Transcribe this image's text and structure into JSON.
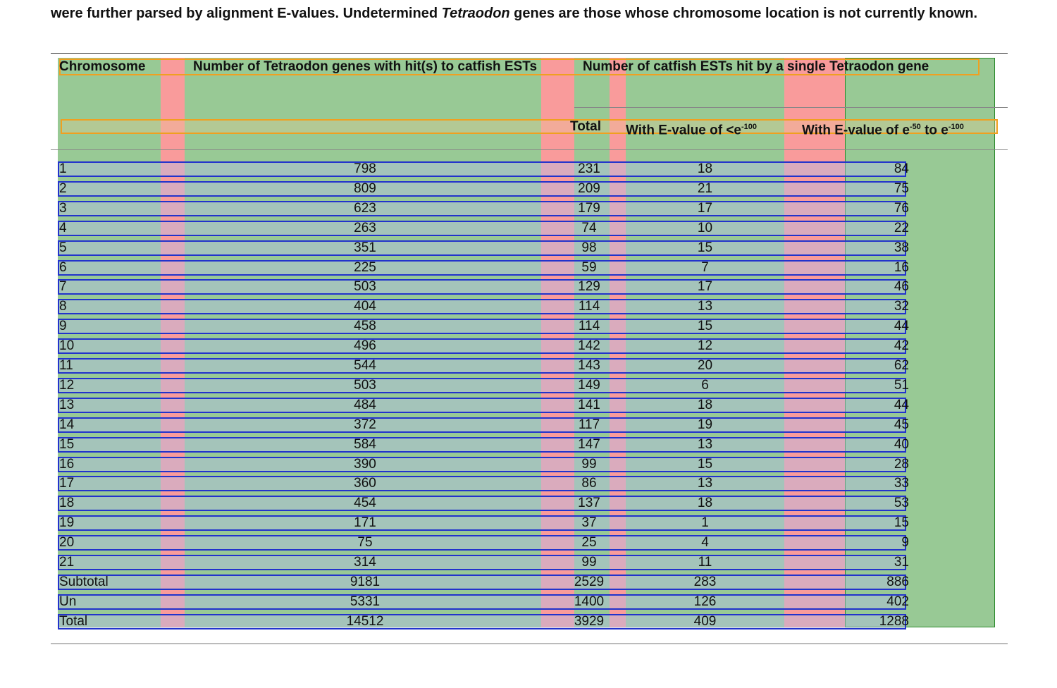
{
  "caption": {
    "text1": "were further parsed by alignment E-values. Undetermined ",
    "italic": "Tetraodon",
    "text2": " genes are those whose chromosome location is not currently known."
  },
  "header": {
    "chromosome": "Chromosome",
    "genes": "Number of Tetraodon genes with hit(s) to catfish ESTs",
    "group": "Number of catfish ESTs hit by a single Tetraodon gene",
    "total": "Total",
    "evalue_high": {
      "text": "With E-value of <e",
      "sup": "-100"
    },
    "evalue_mid": {
      "text1": "With E-value of e",
      "sup1": "-50",
      "text2": " to e",
      "sup2": "-100"
    }
  },
  "table": {
    "rows": [
      [
        "1",
        "798",
        "231",
        "18",
        "84"
      ],
      [
        "2",
        "809",
        "209",
        "21",
        "75"
      ],
      [
        "3",
        "623",
        "179",
        "17",
        "76"
      ],
      [
        "4",
        "263",
        "74",
        "10",
        "22"
      ],
      [
        "5",
        "351",
        "98",
        "15",
        "38"
      ],
      [
        "6",
        "225",
        "59",
        "7",
        "16"
      ],
      [
        "7",
        "503",
        "129",
        "17",
        "46"
      ],
      [
        "8",
        "404",
        "114",
        "13",
        "32"
      ],
      [
        "9",
        "458",
        "114",
        "15",
        "44"
      ],
      [
        "10",
        "496",
        "142",
        "12",
        "42"
      ],
      [
        "11",
        "544",
        "143",
        "20",
        "62"
      ],
      [
        "12",
        "503",
        "149",
        "6",
        "51"
      ],
      [
        "13",
        "484",
        "141",
        "18",
        "44"
      ],
      [
        "14",
        "372",
        "117",
        "19",
        "45"
      ],
      [
        "15",
        "584",
        "147",
        "13",
        "40"
      ],
      [
        "16",
        "390",
        "99",
        "15",
        "28"
      ],
      [
        "17",
        "360",
        "86",
        "13",
        "33"
      ],
      [
        "18",
        "454",
        "137",
        "18",
        "53"
      ],
      [
        "19",
        "171",
        "37",
        "1",
        "15"
      ],
      [
        "20",
        "75",
        "25",
        "4",
        "9"
      ],
      [
        "21",
        "314",
        "99",
        "11",
        "31"
      ],
      [
        "Subtotal",
        "9181",
        "2529",
        "283",
        "886"
      ],
      [
        "Un",
        "5331",
        "1400",
        "126",
        "402"
      ],
      [
        "Total",
        "14512",
        "3929",
        "409",
        "1288"
      ]
    ]
  }
}
